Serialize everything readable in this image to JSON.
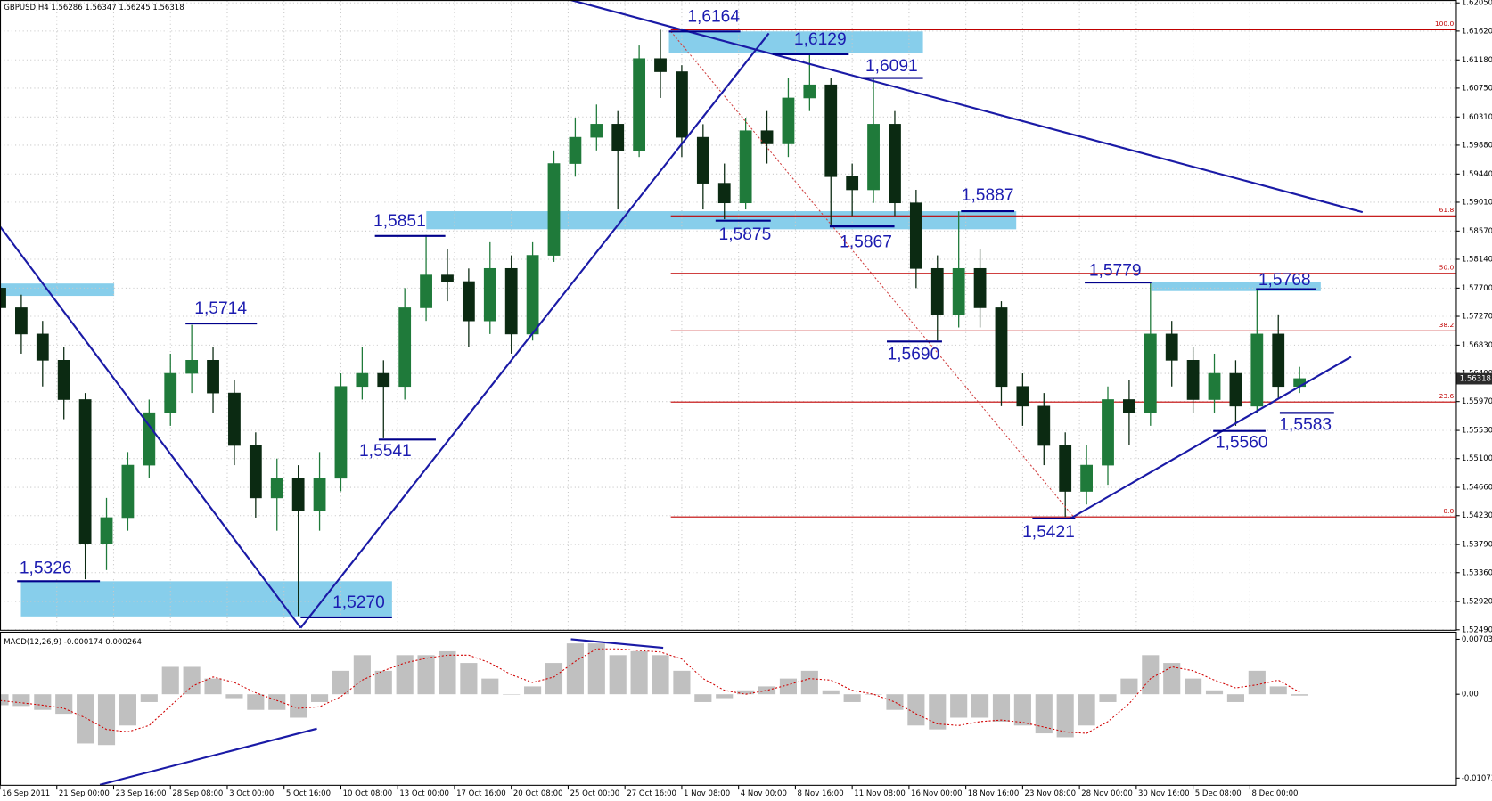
{
  "chart_data": [
    {
      "type": "candlestick",
      "title": "GBPUSD,H4  1.56286 1.56347 1.56245 1.56318",
      "x": [
        0,
        6,
        12,
        18,
        24,
        30,
        36,
        42,
        48,
        54,
        60,
        66,
        72,
        78,
        84,
        90,
        96,
        102,
        108,
        114,
        120,
        126,
        132,
        138,
        144,
        150,
        156,
        162,
        168,
        174,
        180,
        186,
        192,
        198,
        204,
        210,
        216,
        222,
        228,
        234,
        240,
        246,
        252,
        258,
        264,
        270,
        276,
        282,
        288,
        294,
        300,
        306,
        312,
        318,
        324,
        330,
        336,
        342,
        348,
        354,
        360,
        366
      ],
      "open": [
        1.577,
        1.574,
        1.57,
        1.566,
        1.56,
        1.538,
        1.542,
        1.55,
        1.558,
        1.564,
        1.566,
        1.561,
        1.553,
        1.545,
        1.548,
        1.543,
        1.548,
        1.562,
        1.564,
        1.562,
        1.574,
        1.579,
        1.578,
        1.572,
        1.58,
        1.57,
        1.582,
        1.596,
        1.6,
        1.602,
        1.598,
        1.612,
        1.61,
        1.6,
        1.593,
        1.59,
        1.601,
        1.599,
        1.606,
        1.608,
        1.594,
        1.592,
        1.602,
        1.59,
        1.58,
        1.573,
        1.58,
        1.574,
        1.562,
        1.559,
        1.553,
        1.546,
        1.55,
        1.56,
        1.558,
        1.57,
        1.566,
        1.56,
        1.564,
        1.559,
        1.57,
        1.562
      ],
      "high": [
        1.5795,
        1.576,
        1.572,
        1.568,
        1.561,
        1.545,
        1.552,
        1.56,
        1.567,
        1.5714,
        1.568,
        1.563,
        1.555,
        1.551,
        1.55,
        1.552,
        1.564,
        1.568,
        1.566,
        1.577,
        1.5851,
        1.583,
        1.58,
        1.584,
        1.582,
        1.584,
        1.598,
        1.603,
        1.605,
        1.604,
        1.614,
        1.6164,
        1.611,
        1.602,
        1.596,
        1.603,
        1.604,
        1.609,
        1.6129,
        1.609,
        1.596,
        1.6091,
        1.604,
        1.592,
        1.582,
        1.5887,
        1.583,
        1.575,
        1.564,
        1.561,
        1.555,
        1.553,
        1.562,
        1.563,
        1.5779,
        1.572,
        1.568,
        1.567,
        1.566,
        1.5768,
        1.573,
        1.565
      ],
      "low": [
        1.572,
        1.567,
        1.562,
        1.557,
        1.5326,
        1.534,
        1.54,
        1.548,
        1.556,
        1.561,
        1.558,
        1.55,
        1.542,
        1.54,
        1.527,
        1.54,
        1.546,
        1.56,
        1.5541,
        1.56,
        1.572,
        1.575,
        1.568,
        1.57,
        1.567,
        1.569,
        1.581,
        1.594,
        1.598,
        1.589,
        1.597,
        1.606,
        1.597,
        1.589,
        1.5875,
        1.589,
        1.596,
        1.597,
        1.604,
        1.5867,
        1.588,
        1.59,
        1.588,
        1.577,
        1.569,
        1.571,
        1.571,
        1.559,
        1.556,
        1.55,
        1.5421,
        1.544,
        1.547,
        1.553,
        1.556,
        1.562,
        1.558,
        1.558,
        1.556,
        1.558,
        1.56,
        1.561
      ],
      "close": [
        1.574,
        1.57,
        1.566,
        1.56,
        1.538,
        1.542,
        1.55,
        1.558,
        1.564,
        1.566,
        1.561,
        1.553,
        1.545,
        1.548,
        1.543,
        1.548,
        1.562,
        1.564,
        1.562,
        1.574,
        1.579,
        1.578,
        1.572,
        1.58,
        1.57,
        1.582,
        1.596,
        1.6,
        1.602,
        1.598,
        1.612,
        1.61,
        1.6,
        1.593,
        1.59,
        1.601,
        1.599,
        1.606,
        1.608,
        1.594,
        1.592,
        1.602,
        1.59,
        1.58,
        1.573,
        1.58,
        1.574,
        1.562,
        1.559,
        1.553,
        1.546,
        1.55,
        1.56,
        1.558,
        1.57,
        1.566,
        1.56,
        1.564,
        1.559,
        1.57,
        1.562,
        1.5632
      ],
      "up_color": "#1f7a3a",
      "down_color": "#0b2a12",
      "xlim": [
        0,
        410
      ],
      "xticks": [
        {
          "value": 0,
          "label": "16 Sep 2011"
        },
        {
          "value": 16,
          "label": "21 Sep 00:00"
        },
        {
          "value": 32,
          "label": "23 Sep 16:00"
        },
        {
          "value": 48,
          "label": "28 Sep 08:00"
        },
        {
          "value": 64,
          "label": "3 Oct 00:00"
        },
        {
          "value": 80,
          "label": "5 Oct 16:00"
        },
        {
          "value": 96,
          "label": "10 Oct 08:00"
        },
        {
          "value": 112,
          "label": "13 Oct 00:00"
        },
        {
          "value": 128,
          "label": "17 Oct 16:00"
        },
        {
          "value": 144,
          "label": "20 Oct 08:00"
        },
        {
          "value": 160,
          "label": "25 Oct 00:00"
        },
        {
          "value": 176,
          "label": "27 Oct 16:00"
        },
        {
          "value": 192,
          "label": "1 Nov 08:00"
        },
        {
          "value": 208,
          "label": "4 Nov 00:00"
        },
        {
          "value": 224,
          "label": "8 Nov 16:00"
        },
        {
          "value": 240,
          "label": "11 Nov 08:00"
        },
        {
          "value": 256,
          "label": "16 Nov 00:00"
        },
        {
          "value": 272,
          "label": "18 Nov 16:00"
        },
        {
          "value": 288,
          "label": "23 Nov 08:00"
        },
        {
          "value": 304,
          "label": "28 Nov 00:00"
        },
        {
          "value": 320,
          "label": "30 Nov 16:00"
        },
        {
          "value": 336,
          "label": "5 Dec 08:00"
        },
        {
          "value": 352,
          "label": "8 Dec 00:00"
        }
      ],
      "ylim": [
        1.5249,
        1.6205
      ],
      "yticks": [
        {
          "value": 1.6205,
          "label": "1.62050"
        },
        {
          "value": 1.6162,
          "label": "1.61620"
        },
        {
          "value": 1.6118,
          "label": "1.61180"
        },
        {
          "value": 1.6075,
          "label": "1.60750"
        },
        {
          "value": 1.6031,
          "label": "1.60310"
        },
        {
          "value": 1.5988,
          "label": "1.59880"
        },
        {
          "value": 1.5944,
          "label": "1.59440"
        },
        {
          "value": 1.5901,
          "label": "1.59010"
        },
        {
          "value": 1.5857,
          "label": "1.58570"
        },
        {
          "value": 1.5814,
          "label": "1.58140"
        },
        {
          "value": 1.577,
          "label": "1.57700"
        },
        {
          "value": 1.5727,
          "label": "1.57270"
        },
        {
          "value": 1.5683,
          "label": "1.56830"
        },
        {
          "value": 1.564,
          "label": "1.56400"
        },
        {
          "value": 1.5597,
          "label": "1.55970"
        },
        {
          "value": 1.5553,
          "label": "1.55530"
        },
        {
          "value": 1.551,
          "label": "1.55100"
        },
        {
          "value": 1.5466,
          "label": "1.54660"
        },
        {
          "value": 1.5423,
          "label": "1.54230"
        },
        {
          "value": 1.5379,
          "label": "1.53790"
        },
        {
          "value": 1.5336,
          "label": "1.53360"
        },
        {
          "value": 1.5292,
          "label": "1.52920"
        },
        {
          "value": 1.5249,
          "label": "1.52490"
        }
      ],
      "grid": true,
      "last_price": 1.56318,
      "fibonacci": {
        "high": 1.6164,
        "low": 1.5421,
        "color": "#c00000",
        "levels": [
          {
            "value": 100,
            "label": "100.0"
          },
          61.8,
          {
            "value": 50,
            "label": "50.0"
          },
          38.2,
          23.6,
          {
            "value": 0,
            "label": "0.0"
          }
        ]
      },
      "annotations": [
        "1,6164",
        "1,6129",
        "1,6091",
        "1,5851",
        "1,5875",
        "1,5867",
        "1,5887",
        "1,5714",
        "1,5326",
        "1,5270",
        "1,5541",
        "1,5690",
        "1,5779",
        "1,5768",
        "1,5560",
        "1,5583",
        "1,5421"
      ]
    },
    {
      "type": "bar",
      "title": "MACD(12,26,9) -0.000174 0.000264",
      "x": [
        0,
        6,
        12,
        18,
        24,
        30,
        36,
        42,
        48,
        54,
        60,
        66,
        72,
        78,
        84,
        90,
        96,
        102,
        108,
        114,
        120,
        126,
        132,
        138,
        144,
        150,
        156,
        162,
        168,
        174,
        180,
        186,
        192,
        198,
        204,
        210,
        216,
        222,
        228,
        234,
        240,
        246,
        252,
        258,
        264,
        270,
        276,
        282,
        288,
        294,
        300,
        306,
        312,
        318,
        324,
        330,
        336,
        342,
        348,
        354,
        360,
        366
      ],
      "values": [
        -0.0014,
        -0.0015,
        -0.002,
        -0.0025,
        -0.0063,
        -0.0065,
        -0.004,
        -0.001,
        0.0035,
        0.0035,
        0.002,
        -0.0005,
        -0.002,
        -0.002,
        -0.003,
        -0.001,
        0.003,
        0.005,
        0.003,
        0.005,
        0.005,
        0.0055,
        0.004,
        0.002,
        0.0,
        0.001,
        0.004,
        0.0065,
        0.0065,
        0.005,
        0.0055,
        0.005,
        0.003,
        -0.001,
        -0.0005,
        0.0005,
        0.001,
        0.002,
        0.003,
        0.0005,
        -0.001,
        0.0,
        -0.002,
        -0.004,
        -0.0045,
        -0.003,
        -0.003,
        -0.0035,
        -0.004,
        -0.005,
        -0.0055,
        -0.004,
        -0.001,
        0.002,
        0.005,
        0.004,
        0.002,
        0.0005,
        -0.001,
        0.003,
        0.001,
        -0.000174
      ],
      "color": "#c0c0c0",
      "signal": [
        -0.0008,
        -0.0011,
        -0.0014,
        -0.0018,
        -0.003,
        -0.0045,
        -0.0048,
        -0.004,
        -0.0015,
        0.001,
        0.0022,
        0.0015,
        0.0002,
        -0.0008,
        -0.0018,
        -0.0016,
        -0.0003,
        0.0018,
        0.003,
        0.004,
        0.0046,
        0.005,
        0.005,
        0.004,
        0.0025,
        0.0015,
        0.0022,
        0.0042,
        0.0058,
        0.0058,
        0.0056,
        0.0054,
        0.0045,
        0.002,
        0.0005,
        0.0,
        0.0005,
        0.0012,
        0.002,
        0.0018,
        0.0005,
        0.0,
        -0.001,
        -0.0025,
        -0.0038,
        -0.004,
        -0.0035,
        -0.0033,
        -0.0036,
        -0.0042,
        -0.0048,
        -0.005,
        -0.0035,
        -0.0012,
        0.002,
        0.0035,
        0.003,
        0.0018,
        0.0008,
        0.0012,
        0.0018,
        0.000264
      ],
      "signal_color": "#d00000",
      "xlim": [
        0,
        410
      ],
      "ylim": [
        -0.01073,
        0.007033
      ],
      "yticks": [
        0.007033,
        {
          "value": 0,
          "label": "0.00"
        },
        -0.01073
      ]
    }
  ]
}
